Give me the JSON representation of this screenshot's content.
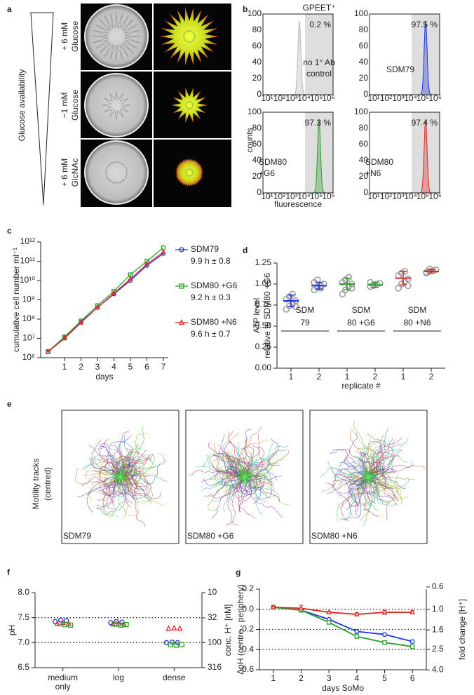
{
  "panel_labels": [
    "a",
    "b",
    "c",
    "d",
    "e",
    "f",
    "g"
  ],
  "panel_a": {
    "axis_label": "Glucose availability",
    "rows": [
      [
        "+ 6 mM",
        "Glucose"
      ],
      [
        "~1 mM",
        "Glucose"
      ],
      [
        "+ 6 mM",
        "GlcNAc"
      ]
    ]
  },
  "panel_b": {
    "gate_label": "GPEET⁺",
    "y_label": "counts",
    "x_label": "fluorescence",
    "xtick_labels": [
      "10¹",
      "10²",
      "10³",
      "10⁴",
      "10⁵",
      "10⁶"
    ],
    "ytick_labels": [
      "0",
      "20",
      "40",
      "60",
      "80",
      "100"
    ],
    "plots": [
      {
        "percent": "0.2 %",
        "sample": [
          "no 1° Ab",
          "control"
        ],
        "color": "#b5b5b5"
      },
      {
        "percent": "97.5 %",
        "sample": [
          "SDM79"
        ],
        "color": "#1f35e0"
      },
      {
        "percent": "97.3 %",
        "sample": [
          "SDM80",
          "+G6"
        ],
        "color": "#2e9e2e"
      },
      {
        "percent": "97.4 %",
        "sample": [
          "SDM80",
          "+N6"
        ],
        "color": "#e0282a"
      }
    ]
  },
  "panel_e": {
    "label": [
      "Motility tracks",
      "(centred)"
    ],
    "samples": [
      {
        "name": "SDM79",
        "color": "#1f35e0"
      },
      {
        "name": "SDM80 +G6",
        "color": "#2e9e2e"
      },
      {
        "name": "SDM80 +N6",
        "color": "#e0282a"
      }
    ]
  },
  "chart_data": [
    {
      "type": "line",
      "x_label": "days",
      "y_label": "cumulative cell number ml⁻¹",
      "log_y": true,
      "x": [
        0,
        1,
        2,
        3,
        4,
        5,
        6,
        7
      ],
      "xlim": [
        -0.45,
        7.3
      ],
      "xticks": [
        1,
        2,
        3,
        4,
        5,
        6,
        7
      ],
      "ylim": [
        1000000,
        1000000000000
      ],
      "yticks": [
        {
          "value": 1000000,
          "label": "10⁶"
        },
        {
          "value": 10000000,
          "label": "10⁷"
        },
        {
          "value": 100000000,
          "label": "10⁸"
        },
        {
          "value": 1000000000,
          "label": "10⁹"
        },
        {
          "value": 10000000000,
          "label": "10¹⁰"
        },
        {
          "value": 100000000000,
          "label": "10¹¹"
        },
        {
          "value": 1000000000000,
          "label": "10¹²"
        }
      ],
      "series": [
        {
          "name": "SDM79",
          "note": "9.9 h ± 0.8",
          "color": "#1f35e0",
          "marker": "circle",
          "values": [
            2000000,
            11000000,
            70000000,
            400000000,
            2000000000,
            10000000000,
            60000000000,
            250000000000
          ]
        },
        {
          "name": "SDM80 +G6",
          "note": "9.2 h ± 0.3",
          "color": "#2e9e2e",
          "marker": "square",
          "values": [
            2100000,
            12000000,
            80000000,
            500000000,
            2800000000,
            20000000000,
            100000000000,
            500000000000
          ]
        },
        {
          "name": "SDM80 +N6",
          "note": "9.6 h ± 0.7",
          "color": "#e0282a",
          "marker": "triangle",
          "values": [
            2000000,
            10000000,
            65000000,
            400000000,
            2200000000,
            12000000000,
            70000000000,
            300000000000
          ]
        }
      ]
    },
    {
      "type": "dot",
      "x_label": "replicate #",
      "y_label": [
        "ATP level",
        "relative to SDM80 +G6"
      ],
      "categories": [
        "1",
        "2",
        "1",
        "2",
        "1",
        "2"
      ],
      "groups": [
        {
          "name": [
            "SDM",
            "79"
          ],
          "color": "#1f35e0"
        },
        {
          "name": [
            "SDM",
            "80 +G6"
          ],
          "color": "#2e9e2e"
        },
        {
          "name": [
            "SDM",
            "80 +N6"
          ],
          "color": "#e0282a"
        }
      ],
      "points": [
        [
          0.7,
          0.74,
          0.77,
          0.8,
          0.82,
          0.85,
          0.88,
          0.73
        ],
        [
          0.93,
          0.96,
          0.98,
          1.0,
          1.02,
          1.05,
          0.95
        ],
        [
          0.88,
          0.93,
          0.97,
          1.0,
          1.02,
          1.05,
          1.08,
          0.95
        ],
        [
          0.97,
          0.98,
          1.0,
          1.01,
          1.02,
          0.99
        ],
        [
          0.95,
          1.0,
          1.03,
          1.06,
          1.1,
          1.13,
          1.15,
          0.98
        ],
        [
          1.13,
          1.15,
          1.16,
          1.17,
          1.14,
          1.18
        ]
      ],
      "values": [
        0.8,
        0.98,
        1.0,
        0.99,
        1.07,
        1.15
      ],
      "errors": [
        0.07,
        0.04,
        0.07,
        0.03,
        0.08,
        0.02
      ],
      "ylim": [
        0,
        1.25
      ],
      "yticks": [
        {
          "value": 0,
          "label": "0.00"
        },
        {
          "value": 0.25,
          "label": "0.25"
        },
        {
          "value": 0.5,
          "label": "0.50"
        },
        {
          "value": 0.75,
          "label": "0.75"
        },
        {
          "value": 1,
          "label": "1.00"
        },
        {
          "value": 1.25,
          "label": "1.25"
        }
      ],
      "point_color": "#9a9a9a"
    },
    {
      "type": "dot_series",
      "y_label": "pH",
      "y2_label": "conc. H⁺ [nM]",
      "categories": [
        [
          "medium",
          "only"
        ],
        [
          "log"
        ],
        [
          "dense"
        ]
      ],
      "ylim": [
        6.5,
        8
      ],
      "yticks": [
        6.5,
        {
          "value": 7,
          "label": "7.0"
        },
        7.5,
        {
          "value": 8,
          "label": "8.0"
        }
      ],
      "y2lim": [
        316,
        10
      ],
      "y2log": true,
      "y2ticks": [
        10,
        32,
        100,
        316
      ],
      "ref_lines": [
        7.5,
        7
      ],
      "series": [
        {
          "color": "#1f35e0",
          "marker": "circle",
          "values": [
            [
              7.42,
              7.45,
              7.44
            ],
            [
              7.4,
              7.42,
              7.41
            ],
            [
              7.0,
              7.01,
              7.0
            ]
          ]
        },
        {
          "color": "#e0282a",
          "marker": "triangle",
          "values": [
            [
              7.38,
              7.4,
              7.38
            ],
            [
              7.37,
              7.38,
              7.36
            ],
            [
              7.28,
              7.29,
              7.28
            ]
          ]
        },
        {
          "color": "#2e9e2e",
          "marker": "square",
          "values": [
            [
              7.38,
              7.36,
              7.35
            ],
            [
              7.37,
              7.35,
              7.36
            ],
            [
              6.96,
              6.95,
              6.96
            ]
          ]
        }
      ]
    },
    {
      "type": "line_err",
      "x_label": "days SoMo",
      "y_label": "ΔpH (centre - periphery)",
      "y2_label": "fold change [H⁺]",
      "x": [
        1,
        2,
        3,
        4,
        5,
        6
      ],
      "xlim": [
        0.5,
        6.5
      ],
      "xticks": [
        1,
        2,
        3,
        4,
        5,
        6
      ],
      "ylim": [
        -0.6,
        0.2
      ],
      "yticks": [
        -0.6,
        -0.4,
        -0.2,
        {
          "value": 0,
          "label": "0.0"
        },
        0.2
      ],
      "y2lim": [
        3.98,
        0.63
      ],
      "y2log": true,
      "y2ticks": [
        {
          "value": 4,
          "label": "4.0"
        },
        2.5,
        1.6,
        {
          "value": 1,
          "label": "1.0"
        },
        0.6
      ],
      "ref_lines": [
        0,
        -0.2,
        -0.4
      ],
      "series": [
        {
          "color": "#1f35e0",
          "marker": "circle",
          "values": [
            0.02,
            -0.01,
            -0.1,
            -0.22,
            -0.25,
            -0.32
          ],
          "errors": [
            0.01,
            0.01,
            0.01,
            0.02,
            0.015,
            0.015
          ]
        },
        {
          "color": "#2e9e2e",
          "marker": "square",
          "values": [
            0.02,
            -0.01,
            -0.13,
            -0.27,
            -0.33,
            -0.37
          ],
          "errors": [
            0.01,
            0.01,
            0.01,
            0.015,
            0.015,
            0.015
          ]
        },
        {
          "color": "#e0282a",
          "marker": "triangle",
          "values": [
            0.02,
            0.01,
            -0.03,
            -0.05,
            -0.03,
            -0.03
          ],
          "errors": [
            0.01,
            0.03,
            0.01,
            0.015,
            0.02,
            0.015
          ]
        }
      ]
    }
  ]
}
